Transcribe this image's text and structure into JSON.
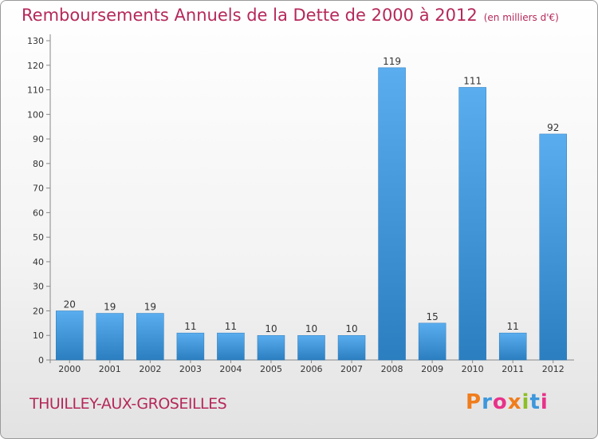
{
  "chart_data": {
    "type": "bar",
    "title": "Remboursements Annuels de la Dette de 2000 à 2012",
    "subtitle": "(en milliers d'€)",
    "categories": [
      "2000",
      "2001",
      "2002",
      "2003",
      "2004",
      "2005",
      "2006",
      "2007",
      "2008",
      "2009",
      "2010",
      "2011",
      "2012"
    ],
    "values": [
      20,
      19,
      19,
      11,
      11,
      10,
      10,
      10,
      119,
      15,
      111,
      11,
      92
    ],
    "ylim": [
      0,
      130
    ],
    "yticks": [
      0,
      10,
      20,
      30,
      40,
      50,
      60,
      70,
      80,
      90,
      100,
      110,
      120,
      130
    ],
    "grid": false,
    "bar_color": "#3d97dc"
  },
  "commune": "THUILLEY-AUX-GROSEILLES",
  "logo": {
    "text": "Proxiti",
    "colors": [
      "#f07d1c",
      "#3d97dc",
      "#e8328a",
      "#f07d1c",
      "#8cbf26",
      "#3d97dc",
      "#e8328a"
    ]
  }
}
